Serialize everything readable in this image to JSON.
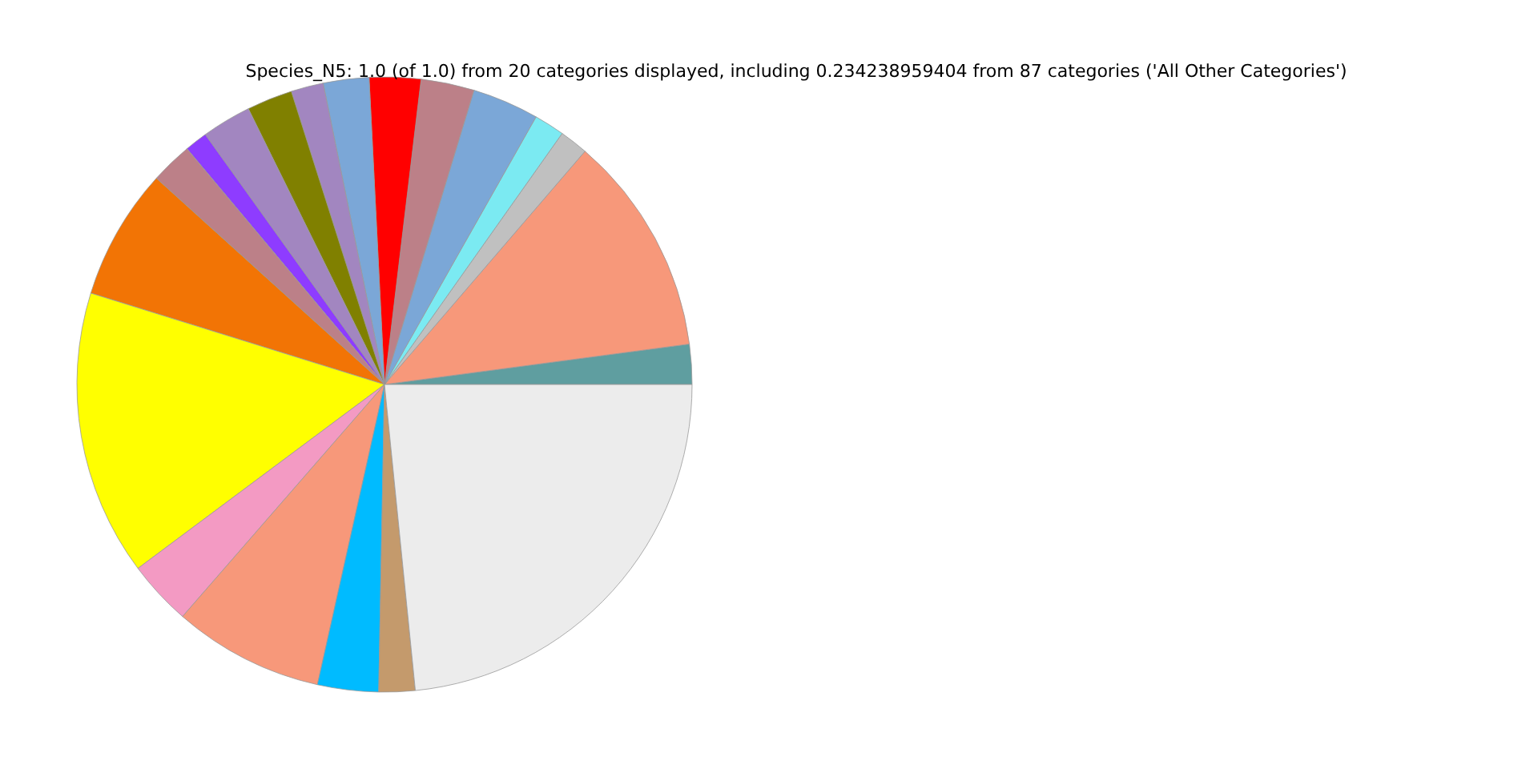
{
  "chart_data": {
    "type": "pie",
    "title": "Species_N5: 1.0 (of 1.0) from 20 categories displayed, including 0.234238959404 from 87 categories ('All Other Categories')",
    "categories": [
      null,
      null,
      null,
      null,
      null,
      null,
      null,
      null,
      null,
      null,
      null,
      null,
      null,
      null,
      null,
      null,
      null,
      null,
      null,
      null
    ],
    "values": [
      2.1,
      11.6,
      1.5,
      1.6,
      3.5,
      2.8,
      2.7,
      2.4,
      1.7,
      2.4,
      2.6,
      1.2,
      2.2,
      6.9,
      15.0,
      3.4,
      7.9,
      3.2,
      1.9,
      23.4
    ],
    "colors": [
      "#5f9ea0",
      "#f7987a",
      "#c0c0c0",
      "#7beaf2",
      "#7ba7d7",
      "#bc8088",
      "#ff0000",
      "#7ba7d7",
      "#a286c0",
      "#808000",
      "#a286c0",
      "#8e3cff",
      "#bc8088",
      "#f27405",
      "#ffff00",
      "#f39ac3",
      "#f7987a",
      "#00bbff",
      "#c49a6c",
      "#ececec"
    ]
  }
}
